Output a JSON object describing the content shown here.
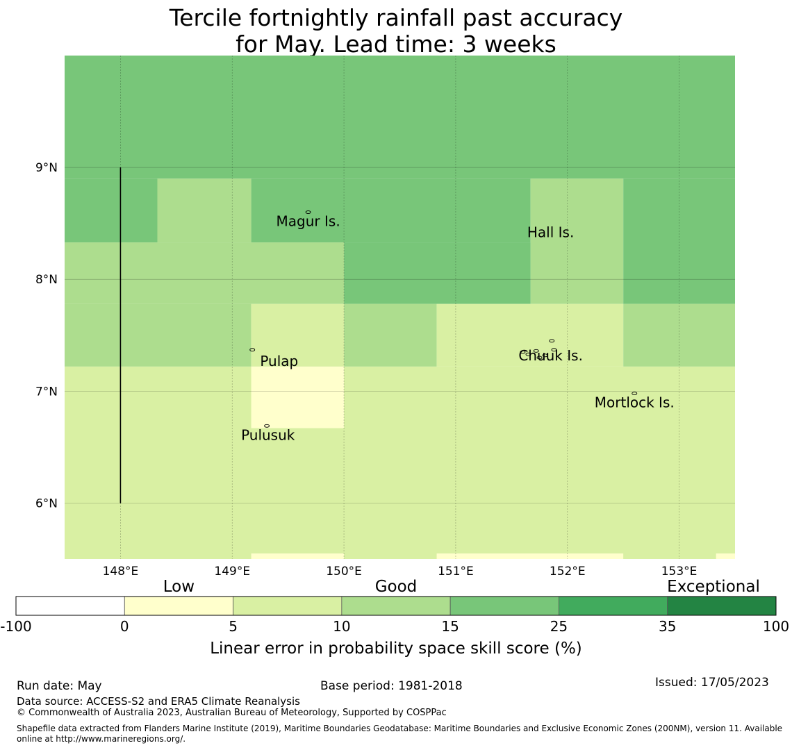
{
  "title_line1": "Tercile fortnightly rainfall past accuracy",
  "title_line2": "for May. Lead time: 3 weeks",
  "map": {
    "lon_range": [
      147.5,
      153.5
    ],
    "lat_range": [
      5.5,
      10.0
    ],
    "lon_ticks": [
      "148°E",
      "149°E",
      "150°E",
      "151°E",
      "152°E",
      "153°E"
    ],
    "lat_ticks": [
      "9°N",
      "8°N",
      "7°N",
      "6°N"
    ],
    "boundary_line": {
      "lon": 148.0,
      "lat_from": 6.0,
      "lat_to": 9.0
    },
    "places": [
      {
        "name": "Magur Is.",
        "lon": 149.68,
        "lat": 8.6
      },
      {
        "name": "Hall Is.",
        "lon": 151.85,
        "lat": 8.5
      },
      {
        "name": "Pulap",
        "lon": 149.42,
        "lat": 7.35
      },
      {
        "name": "Chuuk Is.",
        "lon": 151.85,
        "lat": 7.4
      },
      {
        "name": "Mortlock Is.",
        "lon": 152.6,
        "lat": 6.98
      },
      {
        "name": "Pulusuk",
        "lon": 149.32,
        "lat": 6.69
      }
    ]
  },
  "skill_grid": [
    {
      "lon": [
        147.5,
        153.5
      ],
      "lat": [
        8.9,
        10.0
      ],
      "class": 4
    },
    {
      "lon": [
        147.5,
        148.33
      ],
      "lat": [
        8.33,
        8.9
      ],
      "class": 4
    },
    {
      "lon": [
        148.33,
        149.17
      ],
      "lat": [
        8.33,
        8.9
      ],
      "class": 3
    },
    {
      "lon": [
        149.17,
        151.67
      ],
      "lat": [
        8.33,
        8.9
      ],
      "class": 4
    },
    {
      "lon": [
        151.67,
        152.5
      ],
      "lat": [
        7.78,
        8.9
      ],
      "class": 3
    },
    {
      "lon": [
        152.5,
        153.5
      ],
      "lat": [
        7.78,
        8.9
      ],
      "class": 4
    },
    {
      "lon": [
        147.5,
        150.0
      ],
      "lat": [
        7.78,
        8.33
      ],
      "class": 3
    },
    {
      "lon": [
        150.0,
        151.67
      ],
      "lat": [
        7.78,
        8.33
      ],
      "class": 4
    },
    {
      "lon": [
        147.5,
        149.17
      ],
      "lat": [
        7.22,
        7.78
      ],
      "class": 3
    },
    {
      "lon": [
        149.17,
        150.0
      ],
      "lat": [
        7.22,
        7.78
      ],
      "class": 2
    },
    {
      "lon": [
        150.0,
        150.83
      ],
      "lat": [
        7.22,
        7.78
      ],
      "class": 3
    },
    {
      "lon": [
        150.83,
        152.5
      ],
      "lat": [
        7.22,
        7.78
      ],
      "class": 2
    },
    {
      "lon": [
        152.5,
        153.5
      ],
      "lat": [
        7.22,
        7.78
      ],
      "class": 3
    },
    {
      "lon": [
        147.5,
        153.5
      ],
      "lat": [
        5.5,
        7.22
      ],
      "class": 2
    },
    {
      "lon": [
        149.17,
        150.0
      ],
      "lat": [
        6.67,
        7.22
      ],
      "class": 1
    },
    {
      "lon": [
        149.17,
        150.0
      ],
      "lat": [
        5.5,
        5.55
      ],
      "class": 1
    },
    {
      "lon": [
        150.83,
        152.5
      ],
      "lat": [
        5.5,
        5.55
      ],
      "class": 1
    },
    {
      "lon": [
        153.33,
        153.5
      ],
      "lat": [
        5.5,
        5.55
      ],
      "class": 1
    }
  ],
  "colorbar": {
    "colors": [
      "#ffffff",
      "#ffffcc",
      "#d9f0a3",
      "#addd8e",
      "#78c679",
      "#41ab5d",
      "#238443"
    ],
    "ticks": [
      "-100",
      "0",
      "5",
      "10",
      "15",
      "25",
      "35",
      "100"
    ],
    "categories": [
      "Low",
      "Good",
      "Exceptional"
    ],
    "label": "Linear error in probability space skill score (%)"
  },
  "footer": {
    "run_date": "Run date: May",
    "base_period": "Base period: 1981-2018",
    "issued": "Issued: 17/05/2023",
    "data_source": "Data source: ACCESS-S2 and ERA5 Climate Reanalysis",
    "copyright": "© Commonwealth of Australia 2023, Australian Bureau of Meteorology, Supported by COSPPac",
    "shapefile_note": "Shapefile data extracted from Flanders Marine Institute (2019), Maritime Boundaries Geodatabase: Maritime Boundaries and Exclusive Economic Zones (200NM), version 11. Available online at http://www.marineregions.org/."
  }
}
